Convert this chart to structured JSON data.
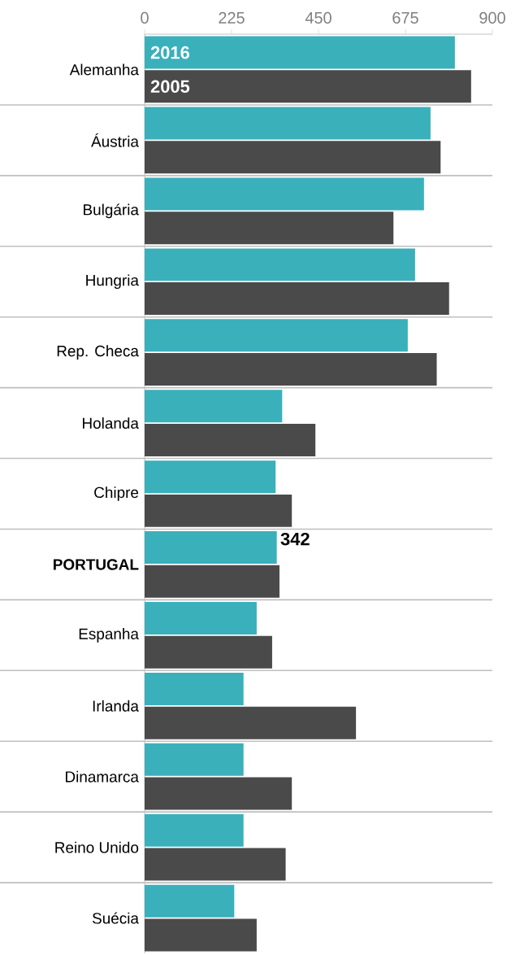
{
  "chart_data": {
    "type": "bar",
    "orientation": "horizontal",
    "categories": [
      "Alemanha",
      "Áustria",
      "Bulgária",
      "Hungria",
      "Rep. Checa",
      "Holanda",
      "Chipre",
      "**PORTUGAL**",
      "Espanha",
      "Irlanda",
      "Dinamarca",
      "Reino Unido",
      "Suécia"
    ],
    "series": [
      {
        "name": "2016",
        "color": "#3ab0bb",
        "values": [
          803,
          740,
          723,
          700,
          681,
          356,
          339,
          342,
          290,
          256,
          256,
          256,
          232
        ],
        "value_labels": [
          null,
          null,
          null,
          null,
          null,
          null,
          null,
          "342",
          null,
          null,
          null,
          null,
          null
        ]
      },
      {
        "name": "2005",
        "color": "#4a4a4a",
        "values": [
          845,
          766,
          644,
          788,
          756,
          442,
          381,
          349,
          330,
          547,
          381,
          365,
          290
        ]
      }
    ],
    "xlim": [
      0,
      900
    ],
    "xticks": [
      0,
      225,
      450,
      675,
      900
    ]
  }
}
